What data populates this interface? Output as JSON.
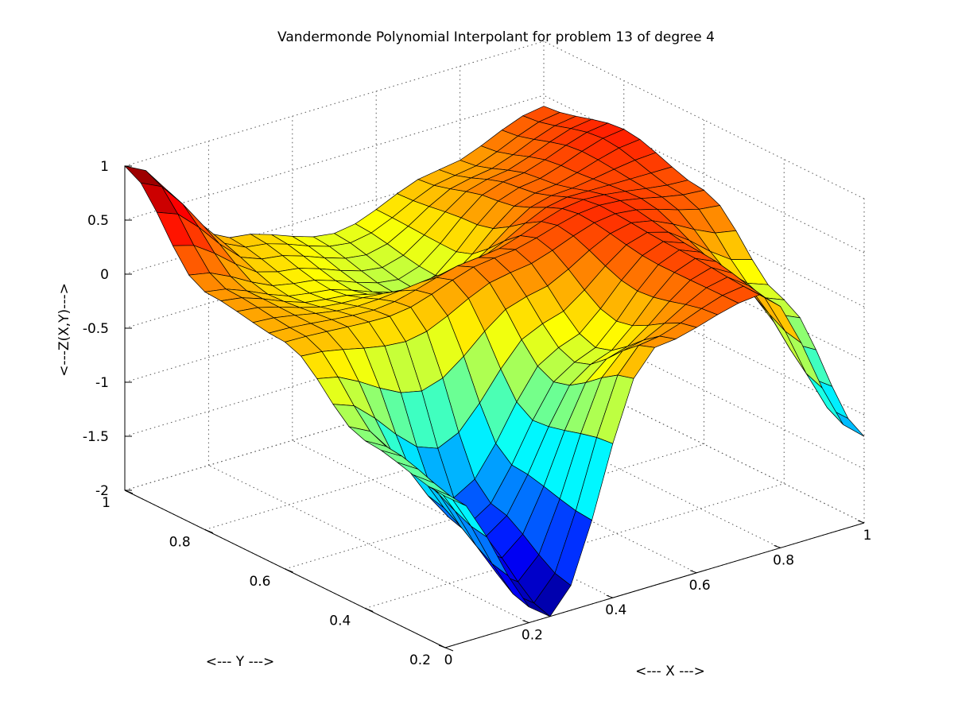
{
  "chart_data": {
    "type": "surface3d",
    "title": "Vandermonde Polynomial Interpolant for problem 13 of degree 4",
    "xlabel": "<--- X --->",
    "ylabel": "<--- Y --->",
    "zlabel": "<---Z(X,Y)--->",
    "xlim": [
      0,
      1
    ],
    "ylim": [
      0.2,
      1
    ],
    "zlim": [
      -2,
      1
    ],
    "x_ticks": [
      "0",
      "0.2",
      "0.4",
      "0.6",
      "0.8",
      "1"
    ],
    "y_ticks": [
      "0.2",
      "0.4",
      "0.6",
      "0.8",
      "1"
    ],
    "z_ticks": [
      "-2",
      "-1.5",
      "-1",
      "-0.5",
      "0",
      "0.5",
      "1"
    ],
    "grid": true,
    "colormap": "jet",
    "grid_size": [
      21,
      21
    ],
    "surface_samples": {
      "x": [
        0,
        0.25,
        0.5,
        0.75,
        1
      ],
      "y": [
        1,
        0.8,
        0.6,
        0.4,
        0.2
      ],
      "z": [
        [
          1.0,
          0.05,
          -0.2,
          0.1,
          0.4
        ],
        [
          0.2,
          -0.1,
          -0.35,
          0.3,
          0.55
        ],
        [
          0.1,
          0.05,
          0.3,
          0.5,
          0.35
        ],
        [
          -0.45,
          -1.5,
          -0.3,
          0.45,
          -0.3
        ],
        [
          -0.6,
          -2.0,
          0.2,
          0.4,
          -1.2
        ]
      ]
    }
  }
}
